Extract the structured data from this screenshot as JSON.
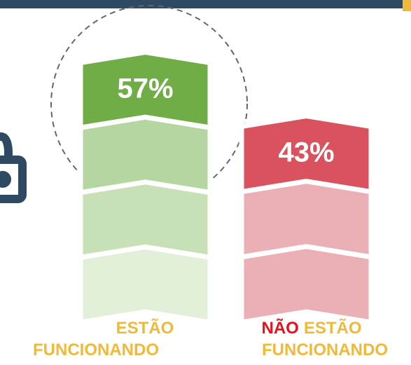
{
  "chart_data": {
    "type": "chevron-bar",
    "values": [
      57,
      43
    ],
    "value_labels": [
      "57%",
      "43%"
    ],
    "colors": [
      [
        "#70ad47",
        "#b5d6a0",
        "#c7e0b6",
        "#e2efd9"
      ],
      [
        "#d9525e",
        "#ebafb6",
        "#ebafb6"
      ]
    ],
    "categories": [
      [
        [
          {
            "text": "ESTÃO",
            "color": "#f0b93a"
          }
        ],
        [
          {
            "text": "FUNCIONANDO",
            "color": "#f0b93a"
          }
        ]
      ],
      [
        [
          {
            "text": "NÃO",
            "color": "#e8101a"
          },
          {
            "text": "ESTÃO",
            "color": "#f0b93a"
          }
        ],
        [
          {
            "text": "FUNCIONANDO",
            "color": "#f0b93a"
          }
        ]
      ]
    ]
  }
}
